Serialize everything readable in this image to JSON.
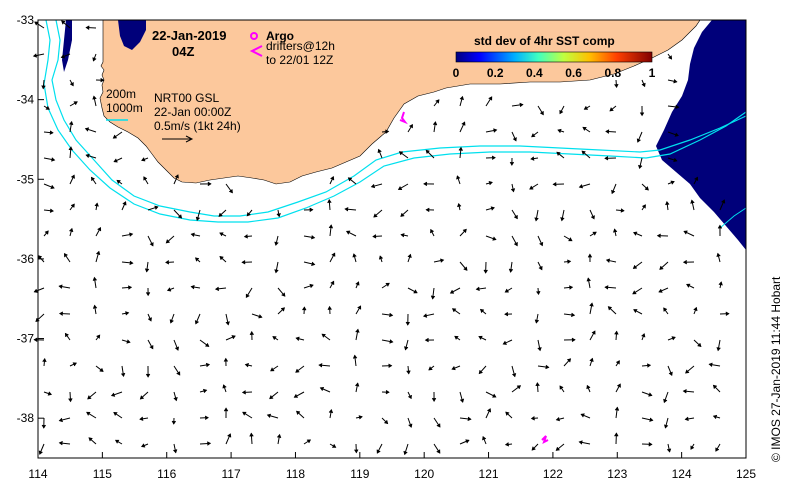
{
  "map": {
    "date": "22-Jan-2019",
    "time": "04Z",
    "argo_label": "Argo",
    "drifters_label_1": "drifters@12h",
    "drifters_label_2": "to 22/01 12Z",
    "colorbar_title": "std dev of 4hr SST comp",
    "colorbar_ticks": [
      "0",
      "0.2",
      "0.4",
      "0.6",
      "0.8",
      "1"
    ],
    "contour_200": "200m",
    "contour_1000": "1000m",
    "model_label": "NRT00 GSL",
    "model_time": "22-Jan 00:00Z",
    "scale_label": "0.5m/s (1kt 24h)",
    "credit": "© IMOS 27-Jan-2019 11:44 Hobart",
    "x_ticks": [
      "114",
      "115",
      "116",
      "117",
      "118",
      "119",
      "120",
      "121",
      "122",
      "123",
      "124",
      "125"
    ],
    "y_ticks": [
      "-33",
      "-34",
      "-35",
      "-36",
      "-37",
      "-38"
    ],
    "lon_range": [
      114,
      125
    ],
    "lat_range": [
      -38.5,
      -33
    ],
    "colors": {
      "land": "#fcc89c",
      "ocean": "#ffffff",
      "high_std_dev": "#00007a",
      "isobath": "#00e0ee",
      "drifter": "#ff00ff",
      "arrow": "#000000"
    }
  }
}
